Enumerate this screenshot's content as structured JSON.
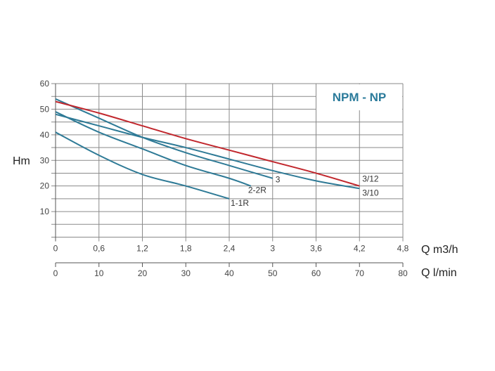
{
  "chart_data": {
    "type": "line",
    "title": "NPM - NP",
    "ylabel": "Hm",
    "xlabel": "Q m3/h",
    "xlabel_parts": {
      "main": "Q m",
      "sup": "3",
      "tail": "/h"
    },
    "x2label": "Q l/min",
    "xlim": [
      0,
      4.8
    ],
    "ylim": [
      0,
      60
    ],
    "x2lim": [
      0,
      80
    ],
    "grid": true,
    "x_ticks": [
      "0",
      "0,6",
      "1,2",
      "1,8",
      "2,4",
      "3",
      "3,6",
      "4,2",
      "4,8"
    ],
    "x2_ticks": [
      "0",
      "10",
      "20",
      "30",
      "40",
      "50",
      "60",
      "70",
      "80"
    ],
    "y_ticks": [
      "10",
      "20",
      "30",
      "40",
      "50",
      "60"
    ],
    "colors": {
      "red": "#c1272d",
      "teal": "#2e7a96",
      "title": "#2b7b9b"
    },
    "series": [
      {
        "name": "3/12",
        "color": "#c1272d",
        "x": [
          0,
          0.6,
          1.2,
          1.8,
          2.4,
          3.0,
          3.6,
          4.2
        ],
        "y": [
          53,
          48.5,
          43.5,
          38.5,
          34,
          29.5,
          25,
          20
        ]
      },
      {
        "name": "3/10",
        "color": "#2e7a96",
        "x": [
          0,
          0.6,
          1.2,
          1.8,
          2.4,
          3.0,
          3.6,
          4.2
        ],
        "y": [
          48,
          43.5,
          39,
          35,
          30.5,
          26,
          22,
          19
        ]
      },
      {
        "name": "3",
        "color": "#2e7a96",
        "x": [
          0,
          0.6,
          1.2,
          1.8,
          2.4,
          3.0
        ],
        "y": [
          54,
          46.5,
          39,
          33,
          28,
          23
        ]
      },
      {
        "name": "2-2R",
        "color": "#2e7a96",
        "x": [
          0,
          0.6,
          1.2,
          1.8,
          2.4,
          2.7
        ],
        "y": [
          49,
          41,
          34.5,
          28,
          23,
          20
        ]
      },
      {
        "name": "1-1R",
        "color": "#2e7a96",
        "x": [
          0,
          0.6,
          1.2,
          1.8,
          2.4
        ],
        "y": [
          41,
          32,
          24.5,
          20,
          15
        ]
      }
    ]
  }
}
